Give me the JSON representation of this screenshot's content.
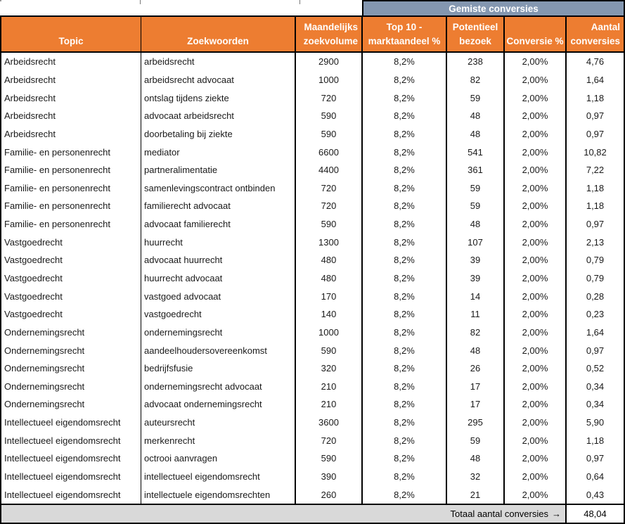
{
  "band": {
    "title": "Gemiste conversies"
  },
  "columns": {
    "topic": {
      "label": "Topic"
    },
    "zoekwoorden": {
      "label": "Zoekwoorden"
    },
    "zoekvolume": {
      "line1": "Maandelijks",
      "line2": "zoekvolume"
    },
    "marktaandeel": {
      "line1": "Top 10 -",
      "line2": "marktaandeel %"
    },
    "bezoek": {
      "line1": "Potentieel",
      "line2": "bezoek"
    },
    "conversie": {
      "label": "Conversie %"
    },
    "aantal": {
      "line1": "Aantal",
      "line2": "conversies"
    }
  },
  "rows": [
    {
      "topic": "Arbeidsrecht",
      "zoekwoord": "arbeidsrecht",
      "zoekvolume": "2900",
      "marktaandeel": "8,2%",
      "bezoek": "238",
      "conversie": "2,00%",
      "aantal": "4,76"
    },
    {
      "topic": "Arbeidsrecht",
      "zoekwoord": "arbeidsrecht advocaat",
      "zoekvolume": "1000",
      "marktaandeel": "8,2%",
      "bezoek": "82",
      "conversie": "2,00%",
      "aantal": "1,64"
    },
    {
      "topic": "Arbeidsrecht",
      "zoekwoord": "ontslag tijdens ziekte",
      "zoekvolume": "720",
      "marktaandeel": "8,2%",
      "bezoek": "59",
      "conversie": "2,00%",
      "aantal": "1,18"
    },
    {
      "topic": "Arbeidsrecht",
      "zoekwoord": "advocaat arbeidsrecht",
      "zoekvolume": "590",
      "marktaandeel": "8,2%",
      "bezoek": "48",
      "conversie": "2,00%",
      "aantal": "0,97"
    },
    {
      "topic": "Arbeidsrecht",
      "zoekwoord": "doorbetaling bij ziekte",
      "zoekvolume": "590",
      "marktaandeel": "8,2%",
      "bezoek": "48",
      "conversie": "2,00%",
      "aantal": "0,97"
    },
    {
      "topic": "Familie- en personenrecht",
      "zoekwoord": "mediator",
      "zoekvolume": "6600",
      "marktaandeel": "8,2%",
      "bezoek": "541",
      "conversie": "2,00%",
      "aantal": "10,82"
    },
    {
      "topic": "Familie- en personenrecht",
      "zoekwoord": "partneralimentatie",
      "zoekvolume": "4400",
      "marktaandeel": "8,2%",
      "bezoek": "361",
      "conversie": "2,00%",
      "aantal": "7,22"
    },
    {
      "topic": "Familie- en personenrecht",
      "zoekwoord": "samenlevingscontract ontbinden",
      "zoekvolume": "720",
      "marktaandeel": "8,2%",
      "bezoek": "59",
      "conversie": "2,00%",
      "aantal": "1,18"
    },
    {
      "topic": "Familie- en personenrecht",
      "zoekwoord": "familierecht advocaat",
      "zoekvolume": "720",
      "marktaandeel": "8,2%",
      "bezoek": "59",
      "conversie": "2,00%",
      "aantal": "1,18"
    },
    {
      "topic": "Familie- en personenrecht",
      "zoekwoord": "advocaat familierecht",
      "zoekvolume": "590",
      "marktaandeel": "8,2%",
      "bezoek": "48",
      "conversie": "2,00%",
      "aantal": "0,97"
    },
    {
      "topic": "Vastgoedrecht",
      "zoekwoord": "huurrecht",
      "zoekvolume": "1300",
      "marktaandeel": "8,2%",
      "bezoek": "107",
      "conversie": "2,00%",
      "aantal": "2,13"
    },
    {
      "topic": "Vastgoedrecht",
      "zoekwoord": "advocaat huurrecht",
      "zoekvolume": "480",
      "marktaandeel": "8,2%",
      "bezoek": "39",
      "conversie": "2,00%",
      "aantal": "0,79"
    },
    {
      "topic": "Vastgoedrecht",
      "zoekwoord": "huurrecht advocaat",
      "zoekvolume": "480",
      "marktaandeel": "8,2%",
      "bezoek": "39",
      "conversie": "2,00%",
      "aantal": "0,79"
    },
    {
      "topic": "Vastgoedrecht",
      "zoekwoord": "vastgoed advocaat",
      "zoekvolume": "170",
      "marktaandeel": "8,2%",
      "bezoek": "14",
      "conversie": "2,00%",
      "aantal": "0,28"
    },
    {
      "topic": "Vastgoedrecht",
      "zoekwoord": "vastgoedrecht",
      "zoekvolume": "140",
      "marktaandeel": "8,2%",
      "bezoek": "11",
      "conversie": "2,00%",
      "aantal": "0,23"
    },
    {
      "topic": "Ondernemingsrecht",
      "zoekwoord": "ondernemingsrecht",
      "zoekvolume": "1000",
      "marktaandeel": "8,2%",
      "bezoek": "82",
      "conversie": "2,00%",
      "aantal": "1,64"
    },
    {
      "topic": "Ondernemingsrecht",
      "zoekwoord": "aandeelhoudersovereenkomst",
      "zoekvolume": "590",
      "marktaandeel": "8,2%",
      "bezoek": "48",
      "conversie": "2,00%",
      "aantal": "0,97"
    },
    {
      "topic": "Ondernemingsrecht",
      "zoekwoord": "bedrijfsfusie",
      "zoekvolume": "320",
      "marktaandeel": "8,2%",
      "bezoek": "26",
      "conversie": "2,00%",
      "aantal": "0,52"
    },
    {
      "topic": "Ondernemingsrecht",
      "zoekwoord": "ondernemingsrecht advocaat",
      "zoekvolume": "210",
      "marktaandeel": "8,2%",
      "bezoek": "17",
      "conversie": "2,00%",
      "aantal": "0,34"
    },
    {
      "topic": "Ondernemingsrecht",
      "zoekwoord": "advocaat ondernemingsrecht",
      "zoekvolume": "210",
      "marktaandeel": "8,2%",
      "bezoek": "17",
      "conversie": "2,00%",
      "aantal": "0,34"
    },
    {
      "topic": "Intellectueel eigendomsrecht",
      "zoekwoord": "auteursrecht",
      "zoekvolume": "3600",
      "marktaandeel": "8,2%",
      "bezoek": "295",
      "conversie": "2,00%",
      "aantal": "5,90"
    },
    {
      "topic": "Intellectueel eigendomsrecht",
      "zoekwoord": "merkenrecht",
      "zoekvolume": "720",
      "marktaandeel": "8,2%",
      "bezoek": "59",
      "conversie": "2,00%",
      "aantal": "1,18"
    },
    {
      "topic": "Intellectueel eigendomsrecht",
      "zoekwoord": "octrooi aanvragen",
      "zoekvolume": "590",
      "marktaandeel": "8,2%",
      "bezoek": "48",
      "conversie": "2,00%",
      "aantal": "0,97"
    },
    {
      "topic": "Intellectueel eigendomsrecht",
      "zoekwoord": "intellectueel eigendomsrecht",
      "zoekvolume": "390",
      "marktaandeel": "8,2%",
      "bezoek": "32",
      "conversie": "2,00%",
      "aantal": "0,64"
    },
    {
      "topic": "Intellectueel eigendomsrecht",
      "zoekwoord": "intellectuele eigendomsrechten",
      "zoekvolume": "260",
      "marktaandeel": "8,2%",
      "bezoek": "21",
      "conversie": "2,00%",
      "aantal": "0,43"
    }
  ],
  "footer": {
    "label": "Totaal aantal conversies",
    "arrow": "→",
    "total": "48,04"
  },
  "colors": {
    "header_bg": "#ED7D31",
    "band_bg": "#8497B0",
    "footer_bg": "#D9D9D9",
    "header_text": "#FFFFFF",
    "border": "#000000"
  }
}
